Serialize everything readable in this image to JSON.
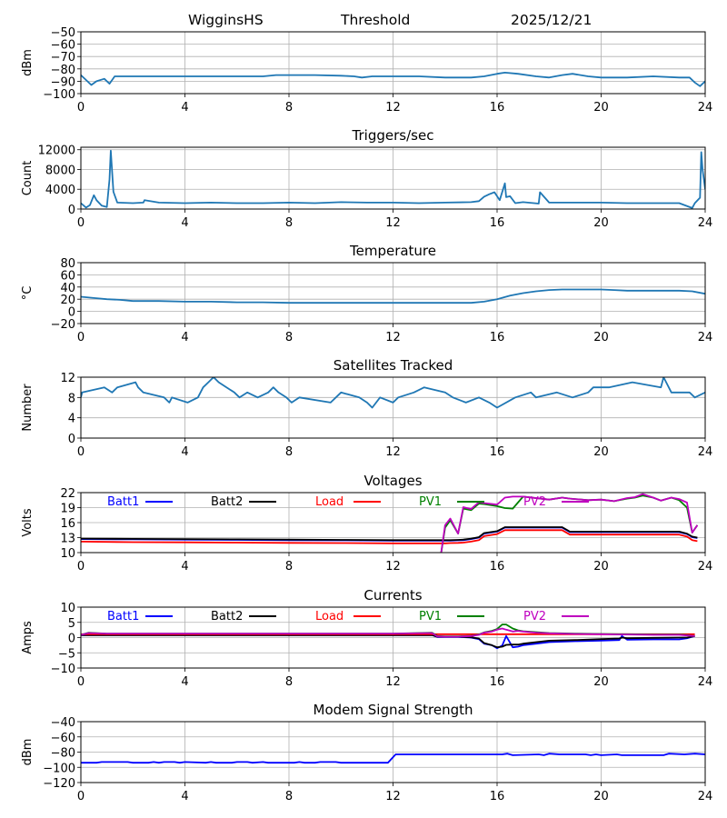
{
  "header": {
    "station": "WigginsHS",
    "label": "Threshold",
    "date": "2025/12/21"
  },
  "chart_data": [
    {
      "id": "threshold",
      "type": "line",
      "title": "",
      "ylabel": "dBm",
      "xlim": [
        0,
        24
      ],
      "ylim": [
        -100,
        -50
      ],
      "xticks": [
        0,
        4,
        8,
        12,
        16,
        20,
        24
      ],
      "yticks": [
        -50,
        -60,
        -70,
        -80,
        -90,
        -100
      ],
      "grid": true,
      "legend": "none",
      "series": [
        {
          "name": "Threshold",
          "color": "#1f77b4",
          "x": [
            0,
            0.2,
            0.4,
            0.6,
            0.9,
            1.1,
            1.3,
            1.6,
            2,
            3,
            4,
            5,
            6,
            7,
            7.5,
            8,
            9,
            10,
            10.5,
            10.8,
            11.2,
            12,
            13,
            14,
            15,
            15.5,
            16,
            16.3,
            16.8,
            17.5,
            18,
            18.5,
            18.9,
            19.5,
            20,
            21,
            22,
            23,
            23.4,
            23.6,
            23.8,
            24
          ],
          "y": [
            -85,
            -89,
            -93,
            -90,
            -88,
            -92,
            -86,
            -86,
            -86,
            -86,
            -86,
            -86,
            -86,
            -86,
            -85,
            -85,
            -85,
            -85.5,
            -86,
            -87,
            -86,
            -86,
            -86,
            -87,
            -87,
            -86,
            -84,
            -83,
            -84,
            -86,
            -87,
            -85,
            -84,
            -86,
            -87,
            -87,
            -86,
            -87,
            -87,
            -91,
            -94,
            -90
          ]
        }
      ]
    },
    {
      "id": "triggers",
      "type": "line",
      "title": "Triggers/sec",
      "ylabel": "Count",
      "xlim": [
        0,
        24
      ],
      "ylim": [
        0,
        12500
      ],
      "xticks": [
        0,
        4,
        8,
        12,
        16,
        20,
        24
      ],
      "yticks": [
        0,
        4000,
        8000,
        12000
      ],
      "grid": true,
      "legend": "none",
      "series": [
        {
          "name": "Triggers",
          "color": "#1f77b4",
          "x": [
            0,
            0.2,
            0.35,
            0.5,
            0.6,
            0.8,
            1.0,
            1.1,
            1.15,
            1.25,
            1.4,
            2,
            2.4,
            2.45,
            3,
            4,
            5,
            6,
            7,
            8,
            9,
            10,
            11,
            12,
            13,
            14,
            15,
            15.3,
            15.5,
            15.7,
            15.9,
            16.1,
            16.3,
            16.35,
            16.5,
            16.7,
            17,
            17.6,
            17.65,
            18,
            19,
            20,
            21,
            22,
            23,
            23.5,
            23.6,
            23.8,
            23.85,
            23.9,
            24
          ],
          "y": [
            1200,
            300,
            800,
            2800,
            1800,
            700,
            400,
            6000,
            11800,
            3500,
            1300,
            1200,
            1300,
            1800,
            1300,
            1200,
            1300,
            1200,
            1200,
            1300,
            1200,
            1400,
            1300,
            1300,
            1200,
            1300,
            1400,
            1600,
            2500,
            3000,
            3400,
            1800,
            5200,
            2400,
            2600,
            1200,
            1400,
            1100,
            3400,
            1300,
            1300,
            1300,
            1200,
            1200,
            1200,
            200,
            1200,
            2300,
            11500,
            8000,
            4000
          ]
        }
      ]
    },
    {
      "id": "temperature",
      "type": "line",
      "title": "Temperature",
      "ylabel": "°C",
      "xlim": [
        0,
        24
      ],
      "ylim": [
        -20,
        80
      ],
      "xticks": [
        0,
        4,
        8,
        12,
        16,
        20,
        24
      ],
      "yticks": [
        80,
        60,
        40,
        20,
        0,
        -20
      ],
      "grid": true,
      "legend": "none",
      "series": [
        {
          "name": "Temperature",
          "color": "#1f77b4",
          "x": [
            0,
            0.5,
            1,
            1.5,
            2,
            3,
            4,
            5,
            6,
            7,
            8,
            10,
            12,
            14,
            15,
            15.5,
            16,
            16.5,
            17,
            17.5,
            18,
            18.5,
            19,
            20,
            20.5,
            21,
            22,
            23,
            23.5,
            24
          ],
          "y": [
            24,
            22,
            20,
            19,
            17,
            17,
            16,
            16,
            15,
            15,
            14,
            14,
            14,
            14,
            14,
            16,
            20,
            26,
            30,
            33,
            35,
            36,
            36,
            36,
            35,
            34,
            34,
            34,
            33,
            29
          ]
        }
      ]
    },
    {
      "id": "satellites",
      "type": "line",
      "title": "Satellites Tracked",
      "ylabel": "Number",
      "xlim": [
        0,
        24
      ],
      "ylim": [
        0,
        12
      ],
      "xticks": [
        0,
        4,
        8,
        12,
        16,
        20,
        24
      ],
      "yticks": [
        0,
        4,
        8,
        12
      ],
      "grid": true,
      "legend": "none",
      "series": [
        {
          "name": "Satellites",
          "color": "#1f77b4",
          "x": [
            0,
            0.05,
            0.9,
            1.2,
            1.4,
            2.1,
            2.2,
            2.4,
            3.2,
            3.4,
            3.5,
            4.1,
            4.5,
            4.7,
            4.9,
            5.1,
            5.3,
            5.6,
            5.9,
            6.1,
            6.4,
            6.8,
            7.2,
            7.4,
            7.6,
            7.9,
            8.1,
            8.4,
            9.6,
            10,
            10.7,
            11,
            11.2,
            11.5,
            12,
            12.2,
            12.8,
            13.2,
            14,
            14.3,
            14.8,
            15.3,
            15.7,
            16,
            16.7,
            17.3,
            17.5,
            18.3,
            18.9,
            19.5,
            19.7,
            20.3,
            21.2,
            22.3,
            22.4,
            22.7,
            23.4,
            23.6,
            24
          ],
          "y": [
            8,
            9,
            10,
            9,
            10,
            11,
            10,
            9,
            8,
            7,
            8,
            7,
            8,
            10,
            11,
            12,
            11,
            10,
            9,
            8,
            9,
            8,
            9,
            10,
            9,
            8,
            7,
            8,
            7,
            9,
            8,
            7,
            6,
            8,
            7,
            8,
            9,
            10,
            9,
            8,
            7,
            8,
            7,
            6,
            8,
            9,
            8,
            9,
            8,
            9,
            10,
            10,
            11,
            10,
            12,
            9,
            9,
            8,
            9
          ]
        }
      ]
    },
    {
      "id": "voltages",
      "type": "line",
      "title": "Voltages",
      "ylabel": "Volts",
      "xlim": [
        0,
        24
      ],
      "ylim": [
        10,
        22
      ],
      "xticks": [
        0,
        4,
        8,
        12,
        16,
        20,
        24
      ],
      "yticks": [
        10,
        13,
        16,
        19,
        22
      ],
      "grid": true,
      "legend": "top (inline)",
      "x": [
        0,
        2,
        4,
        6,
        8,
        10,
        12,
        13,
        13.85,
        14.0,
        14.2,
        14.5,
        14.7,
        15.0,
        15.3,
        15.5,
        16.0,
        16.3,
        16.6,
        17,
        18,
        18.5,
        18.8,
        19.5,
        20,
        20.5,
        21,
        21.3,
        21.6,
        22,
        22.3,
        22.7,
        23.0,
        23.3,
        23.5,
        23.7
      ],
      "series": [
        {
          "name": "Batt1",
          "color": "#0000ff",
          "y": [
            12.7,
            12.65,
            12.6,
            12.55,
            12.5,
            12.45,
            12.4,
            12.4,
            12.4,
            12.4,
            12.4,
            12.45,
            12.5,
            12.7,
            13,
            13.8,
            14.2,
            15,
            15,
            15,
            15,
            15,
            14.1,
            14.1,
            14.1,
            14.1,
            14.1,
            14.1,
            14.1,
            14.1,
            14.1,
            14.1,
            14.1,
            13.7,
            13.1,
            12.9
          ]
        },
        {
          "name": "Batt2",
          "color": "#000000",
          "y": [
            12.8,
            12.75,
            12.7,
            12.65,
            12.6,
            12.55,
            12.5,
            12.5,
            12.5,
            12.5,
            12.5,
            12.55,
            12.6,
            12.8,
            13.1,
            13.9,
            14.3,
            15.1,
            15.1,
            15.1,
            15.1,
            15.1,
            14.2,
            14.2,
            14.2,
            14.2,
            14.2,
            14.2,
            14.2,
            14.2,
            14.2,
            14.2,
            14.2,
            13.8,
            13.2,
            13.0
          ]
        },
        {
          "name": "Load",
          "color": "#ff0000",
          "y": [
            12.2,
            12.1,
            12.05,
            12.0,
            11.95,
            11.9,
            11.85,
            11.85,
            11.85,
            11.85,
            11.9,
            11.95,
            12.0,
            12.2,
            12.5,
            13.3,
            13.7,
            14.5,
            14.5,
            14.5,
            14.5,
            14.5,
            13.6,
            13.6,
            13.6,
            13.6,
            13.6,
            13.6,
            13.6,
            13.6,
            13.6,
            13.6,
            13.6,
            13.2,
            12.5,
            12.3
          ]
        },
        {
          "name": "PV1",
          "color": "#008000",
          "y": [
            null,
            null,
            null,
            null,
            null,
            null,
            null,
            null,
            10,
            15,
            16.5,
            13.8,
            18.8,
            18.5,
            19.8,
            19.7,
            19.3,
            18.9,
            18.8,
            21.2,
            20.6,
            21,
            20.8,
            20.5,
            20.6,
            20.3,
            20.8,
            21,
            21.4,
            21,
            20.4,
            21,
            20.5,
            19,
            14,
            15.5
          ]
        },
        {
          "name": "PV2",
          "color": "#bf00bf",
          "y": [
            null,
            null,
            null,
            null,
            null,
            null,
            null,
            null,
            10,
            15.5,
            16.8,
            13.8,
            19.1,
            18.7,
            20.1,
            19.9,
            19.6,
            21,
            21.2,
            21.2,
            20.6,
            21,
            20.8,
            20.5,
            20.6,
            20.3,
            20.9,
            21.1,
            21.7,
            21,
            20.4,
            21,
            20.7,
            20,
            14,
            15.5
          ]
        }
      ]
    },
    {
      "id": "currents",
      "type": "line",
      "title": "Currents",
      "ylabel": "Amps",
      "xlim": [
        0,
        24
      ],
      "ylim": [
        -10,
        10
      ],
      "xticks": [
        0,
        4,
        8,
        12,
        16,
        20,
        24
      ],
      "yticks": [
        10,
        5,
        0,
        -5,
        -10
      ],
      "grid": true,
      "legend": "top (inline)",
      "x": [
        0,
        0.3,
        1,
        4,
        8,
        12,
        13.5,
        13.7,
        14,
        14.5,
        15,
        15.3,
        15.5,
        15.8,
        16.0,
        16.2,
        16.35,
        16.6,
        16.8,
        17,
        17.5,
        18,
        19,
        20,
        20.7,
        20.8,
        21,
        22,
        23,
        23.3,
        23.6
      ],
      "series": [
        {
          "name": "Batt1",
          "color": "#0000ff",
          "y": [
            0.8,
            0.8,
            0.8,
            0.8,
            0.8,
            0.8,
            0.8,
            0.2,
            0.2,
            0.2,
            0,
            -0.5,
            -2,
            -2.5,
            -3.5,
            -2.6,
            0.5,
            -3.2,
            -3,
            -2.5,
            -2,
            -1.5,
            -1.2,
            -1,
            -0.8,
            0.5,
            -0.7,
            -0.6,
            -0.6,
            -0.2,
            0.5
          ]
        },
        {
          "name": "Batt2",
          "color": "#000000",
          "y": [
            0.8,
            0.8,
            0.8,
            0.8,
            0.8,
            0.8,
            0.8,
            0.3,
            0.3,
            0.3,
            0.1,
            -0.3,
            -1.8,
            -2.5,
            -3.2,
            -3,
            -2.4,
            -2.3,
            -2.3,
            -2,
            -1.5,
            -1,
            -0.8,
            -0.5,
            -0.3,
            0,
            -0.2,
            -0.1,
            0,
            0,
            0.5
          ]
        },
        {
          "name": "Load",
          "color": "#ff0000",
          "y": [
            1.1,
            1.1,
            1.1,
            1.1,
            1.1,
            1.1,
            1.1,
            1.1,
            1.1,
            1.1,
            1.1,
            1.1,
            1.1,
            1.1,
            1.1,
            1.1,
            1.1,
            1.1,
            1.1,
            1.1,
            1.1,
            1.1,
            1.1,
            1.1,
            1.1,
            1.1,
            1.1,
            1.1,
            1.1,
            1.1,
            1.1
          ]
        },
        {
          "name": "PV1",
          "color": "#008000",
          "y": [
            0.9,
            1.6,
            1.3,
            1.3,
            1.3,
            1.3,
            1.6,
            0.5,
            0.4,
            0.4,
            0.6,
            1,
            1.7,
            2.2,
            2.8,
            4.3,
            4.3,
            3.0,
            2.4,
            2.1,
            1.8,
            1.5,
            1.3,
            1.2,
            1.1,
            1.1,
            1.1,
            1.0,
            1.0,
            0.8,
            0.5
          ]
        },
        {
          "name": "PV2",
          "color": "#bf00bf",
          "y": [
            0.9,
            1.5,
            1.3,
            1.3,
            1.3,
            1.3,
            1.5,
            0.4,
            0.3,
            0.3,
            0.5,
            0.9,
            1.6,
            2.0,
            2.6,
            3.0,
            2.6,
            2.0,
            2.2,
            2.0,
            1.6,
            1.4,
            1.2,
            1.1,
            1.0,
            1.0,
            1.0,
            0.9,
            0.9,
            0.7,
            0.5
          ]
        }
      ]
    },
    {
      "id": "modem",
      "type": "line",
      "title": "Modem Signal Strength",
      "ylabel": "dBm",
      "xlim": [
        0,
        24
      ],
      "ylim": [
        -120,
        -40
      ],
      "xticks": [
        0,
        4,
        8,
        12,
        16,
        20,
        24
      ],
      "yticks": [
        -40,
        -60,
        -80,
        -100,
        -120
      ],
      "grid": true,
      "legend": "none",
      "series": [
        {
          "name": "Modem",
          "color": "#0000ff",
          "x": [
            0,
            0.6,
            0.8,
            1.8,
            2,
            2.6,
            2.8,
            3,
            3.2,
            3.6,
            3.8,
            4,
            4.8,
            5,
            5.2,
            5.8,
            6,
            6.4,
            6.6,
            7,
            7.2,
            8.2,
            8.4,
            8.6,
            9,
            9.2,
            9.8,
            10,
            11.8,
            12.1,
            16.2,
            16.4,
            16.6,
            17.6,
            17.8,
            18,
            18.4,
            19.4,
            19.6,
            19.8,
            20,
            20.6,
            20.8,
            22.4,
            22.6,
            23.2,
            23.6,
            24
          ],
          "y": [
            -94,
            -94,
            -93,
            -93,
            -94,
            -94,
            -93,
            -94,
            -93,
            -93,
            -94,
            -93,
            -94,
            -93,
            -94,
            -94,
            -93,
            -93,
            -94,
            -93,
            -94,
            -94,
            -93,
            -94,
            -94,
            -93,
            -93,
            -94,
            -94,
            -83,
            -83,
            -82,
            -84,
            -83,
            -84,
            -82,
            -83,
            -83,
            -84,
            -83,
            -84,
            -83,
            -84,
            -84,
            -82,
            -83,
            -82,
            -83
          ]
        }
      ]
    }
  ]
}
